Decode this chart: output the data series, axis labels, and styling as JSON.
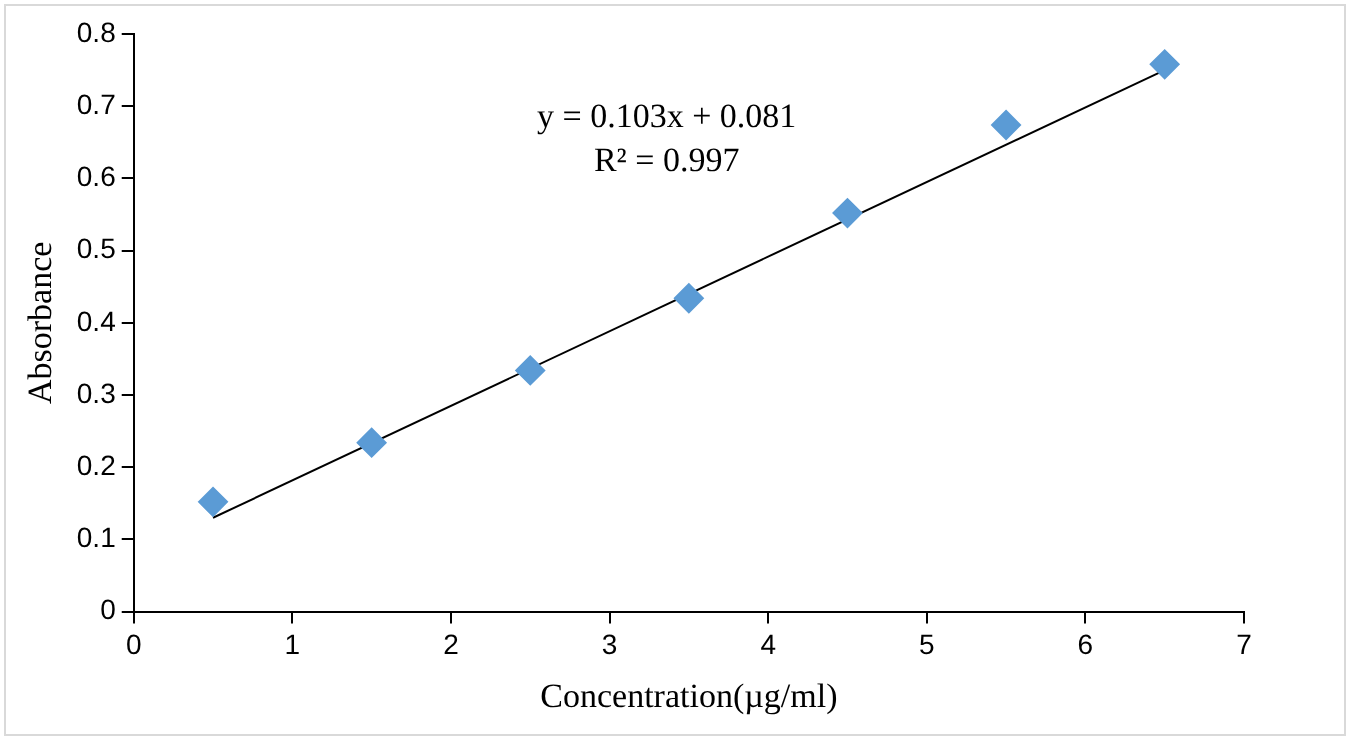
{
  "chart_data": {
    "type": "scatter",
    "xlabel": "Concentration(µg/ml)",
    "ylabel": "Absorbance",
    "xlim": [
      0,
      7
    ],
    "xticks": [
      0,
      1,
      2,
      3,
      4,
      5,
      6,
      7
    ],
    "ylim": [
      0,
      0.8
    ],
    "yticks": [
      0,
      0.1,
      0.2,
      0.3,
      0.4,
      0.5,
      0.6,
      0.7,
      0.8
    ],
    "grid": false,
    "legend": false,
    "series": [
      {
        "type": "scatter",
        "marker": "diamond",
        "color": "#5b9bd5",
        "x": [
          0.5,
          1.5,
          2.5,
          3.5,
          4.5,
          5.5,
          6.5
        ],
        "values": [
          0.152,
          0.234,
          0.334,
          0.434,
          0.552,
          0.674,
          0.758
        ]
      },
      {
        "type": "line",
        "marker": "none",
        "color": "#000000",
        "x": [
          0.5,
          6.5
        ],
        "values": [
          0.13,
          0.75
        ]
      }
    ],
    "annotations": [
      "y = 0.103x + 0.081",
      "R² = 0.997"
    ]
  }
}
